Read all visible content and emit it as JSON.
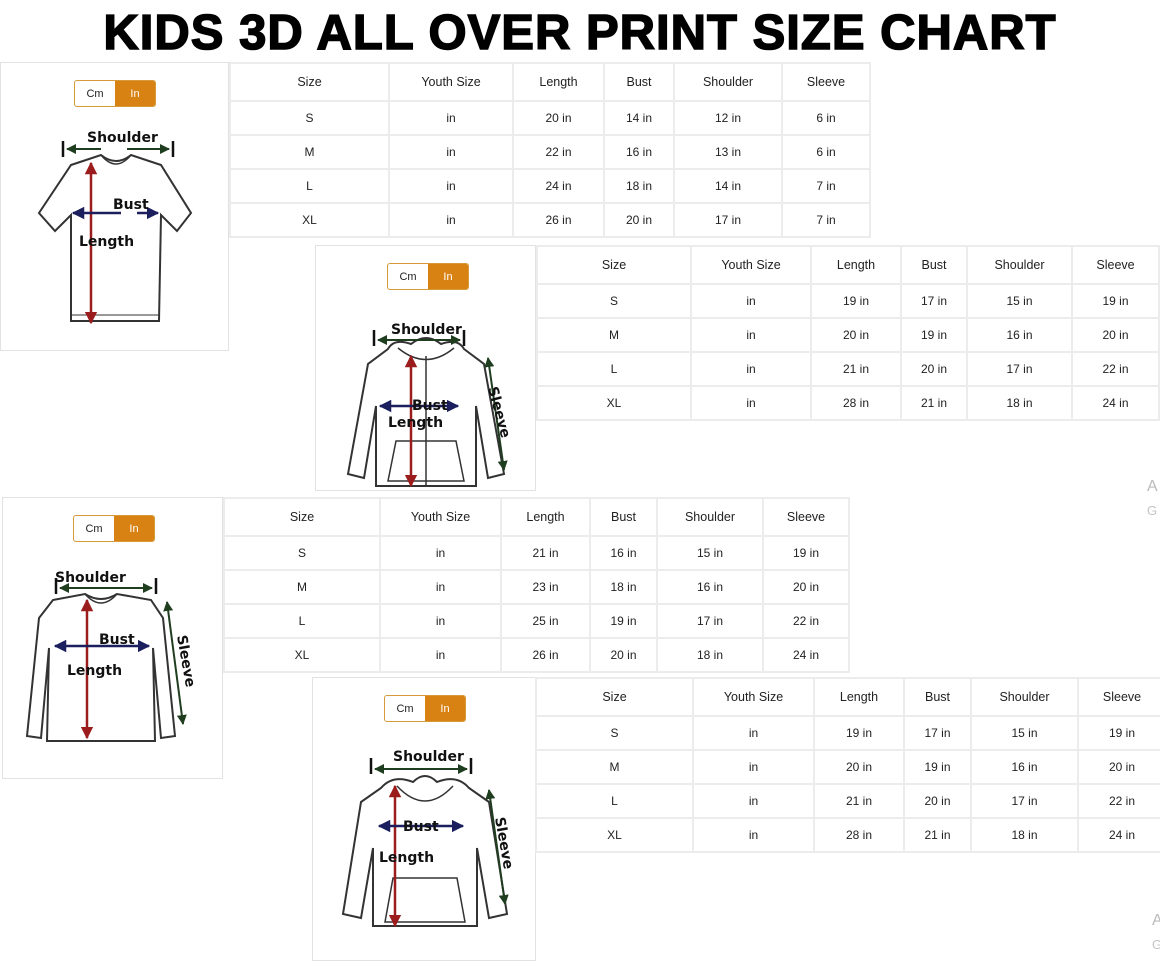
{
  "title": "KIDS 3D ALL OVER PRINT SIZE CHART",
  "colors": {
    "toggle_active": "#d98214",
    "length_arrow": "#9b1c1c",
    "bust_arrow": "#1b1f5e",
    "shoulder_arrow": "#1f3d1f"
  },
  "unit_toggle": {
    "cm": "Cm",
    "in": "In",
    "selected": "In"
  },
  "columns": [
    "Size",
    "Youth Size",
    "Length",
    "Bust",
    "Shoulder",
    "Sleeve"
  ],
  "blocks": [
    {
      "garment": "t-shirt",
      "labels": {
        "shoulder": "Shoulder",
        "bust": "Bust",
        "length": "Length"
      },
      "rows": [
        [
          "S",
          "in",
          "20 in",
          "14 in",
          "12 in",
          "6 in"
        ],
        [
          "M",
          "in",
          "22 in",
          "16 in",
          "13 in",
          "6 in"
        ],
        [
          "L",
          "in",
          "24 in",
          "18 in",
          "14 in",
          "7 in"
        ],
        [
          "XL",
          "in",
          "26 in",
          "20 in",
          "17 in",
          "7 in"
        ]
      ]
    },
    {
      "garment": "zip-hoodie",
      "labels": {
        "shoulder": "Shoulder",
        "bust": "Bust",
        "length": "Length",
        "sleeve": "Sleeve"
      },
      "rows": [
        [
          "S",
          "in",
          "19 in",
          "17 in",
          "15 in",
          "19 in"
        ],
        [
          "M",
          "in",
          "20 in",
          "19 in",
          "16 in",
          "20 in"
        ],
        [
          "L",
          "in",
          "21 in",
          "20 in",
          "17 in",
          "22 in"
        ],
        [
          "XL",
          "in",
          "28 in",
          "21 in",
          "18 in",
          "24 in"
        ]
      ]
    },
    {
      "garment": "long-sleeve-shirt",
      "labels": {
        "shoulder": "Shoulder",
        "bust": "Bust",
        "length": "Length",
        "sleeve": "Sleeve"
      },
      "rows": [
        [
          "S",
          "in",
          "21 in",
          "16 in",
          "15 in",
          "19 in"
        ],
        [
          "M",
          "in",
          "23 in",
          "18 in",
          "16 in",
          "20 in"
        ],
        [
          "L",
          "in",
          "25 in",
          "19 in",
          "17 in",
          "22 in"
        ],
        [
          "XL",
          "in",
          "26 in",
          "20 in",
          "18 in",
          "24 in"
        ]
      ]
    },
    {
      "garment": "pullover-hoodie",
      "labels": {
        "shoulder": "Shoulder",
        "bust": "Bust",
        "length": "Length",
        "sleeve": "Sleeve"
      },
      "rows": [
        [
          "S",
          "in",
          "19 in",
          "17 in",
          "15 in",
          "19 in"
        ],
        [
          "M",
          "in",
          "20 in",
          "19 in",
          "16 in",
          "20 in"
        ],
        [
          "L",
          "in",
          "21 in",
          "20 in",
          "17 in",
          "22 in"
        ],
        [
          "XL",
          "in",
          "28 in",
          "21 in",
          "18 in",
          "24 in"
        ]
      ]
    }
  ],
  "watermark_fragments": [
    "A",
    "G",
    "A",
    "G"
  ]
}
